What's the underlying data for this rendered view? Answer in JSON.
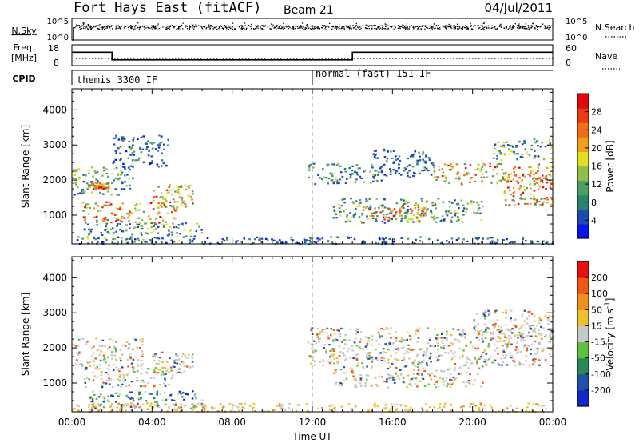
{
  "header": {
    "station": "Fort Hays East (fitACF)",
    "beam": "Beam 21",
    "date": "04/Jul/2011"
  },
  "strips": {
    "nsky": {
      "left_label": "N.Sky",
      "right_label": "N.Search",
      "left_ticks": [
        "10^5",
        "10^0"
      ],
      "right_ticks": [
        "10^5",
        "10^0"
      ]
    },
    "freq": {
      "left_label_1": "Freq.",
      "left_label_2": "[MHz]",
      "right_label": "Nave",
      "left_ticks": [
        "18",
        "8"
      ],
      "right_ticks": [
        "60",
        "0"
      ]
    },
    "cpid": {
      "label": "CPID",
      "modes": [
        {
          "start_hour": 0,
          "text": "themis 3300 IF"
        },
        {
          "start_hour": 11.85,
          "text": "normal (fast) 151 IF"
        }
      ]
    }
  },
  "chart_data": [
    {
      "type": "heatmap",
      "title": "Power",
      "xlabel": "",
      "ylabel": "Slant Range [km]",
      "xlim_hours": [
        0,
        24
      ],
      "ylim": [
        180,
        4600
      ],
      "yticks": [
        "1000",
        "2000",
        "3000",
        "4000"
      ],
      "colorbar": {
        "label": "Power [dB]",
        "ticks": [
          "4",
          "8",
          "12",
          "16",
          "20",
          "24",
          "28"
        ],
        "range": [
          0,
          32
        ],
        "colors": [
          "#0a14e6",
          "#1e4ab4",
          "#2e8070",
          "#4aa062",
          "#8cc04a",
          "#e0e020",
          "#f0a020",
          "#f07018",
          "#e83c10",
          "#e00a0a"
        ]
      },
      "scatter_regions": [
        {
          "t0": 0.0,
          "t1": 3.0,
          "r0": 1600,
          "r1": 2400,
          "level": "mixed"
        },
        {
          "t0": 0.7,
          "t1": 1.8,
          "r0": 1750,
          "r1": 1950,
          "level": "high"
        },
        {
          "t0": 0.5,
          "t1": 5.2,
          "r0": 800,
          "r1": 1400,
          "level": "high"
        },
        {
          "t0": 4.0,
          "t1": 6.0,
          "r0": 1250,
          "r1": 1900,
          "level": "high"
        },
        {
          "t0": 0.5,
          "t1": 6.5,
          "r0": 250,
          "r1": 800,
          "level": "mixed"
        },
        {
          "t0": 2.0,
          "t1": 4.8,
          "r0": 2400,
          "r1": 3300,
          "level": "low"
        },
        {
          "t0": 11.7,
          "t1": 15.5,
          "r0": 1900,
          "r1": 2500,
          "level": "mixed"
        },
        {
          "t0": 13.0,
          "t1": 20.5,
          "r0": 800,
          "r1": 1500,
          "level": "mixed"
        },
        {
          "t0": 14.5,
          "t1": 17.8,
          "r0": 900,
          "r1": 1250,
          "level": "high"
        },
        {
          "t0": 15.0,
          "t1": 18.0,
          "r0": 2100,
          "r1": 2900,
          "level": "low"
        },
        {
          "t0": 18.0,
          "t1": 24.0,
          "r0": 1900,
          "r1": 2500,
          "level": "high"
        },
        {
          "t0": 21.5,
          "t1": 24.0,
          "r0": 1300,
          "r1": 2200,
          "level": "high"
        },
        {
          "t0": 21.0,
          "t1": 24.0,
          "r0": 2600,
          "r1": 3200,
          "level": "mixed"
        },
        {
          "t0": 0.0,
          "t1": 24.0,
          "r0": 180,
          "r1": 400,
          "level": "low"
        }
      ]
    },
    {
      "type": "heatmap",
      "title": "Velocity",
      "xlabel": "Time UT",
      "ylabel": "Slant Range [km]",
      "xlim_hours": [
        0,
        24
      ],
      "ylim": [
        180,
        4600
      ],
      "xticks": [
        "00:00",
        "04:00",
        "08:00",
        "12:00",
        "16:00",
        "20:00",
        "00:00"
      ],
      "yticks": [
        "1000",
        "2000",
        "3000",
        "4000"
      ],
      "colorbar": {
        "label": "Velocity [m s^-1]",
        "ticks": [
          "200",
          "100",
          "50",
          "15",
          "-15",
          "-50",
          "-100",
          "-200"
        ],
        "range": [
          -250,
          250
        ],
        "colors": [
          "#1428c8",
          "#2050a8",
          "#2c8858",
          "#60c040",
          "#c8c8c8",
          "#f0c030",
          "#f09020",
          "#f05818",
          "#e81010"
        ]
      },
      "scatter_regions": [
        {
          "t0": 0.0,
          "t1": 3.5,
          "r0": 1500,
          "r1": 2300,
          "level": "grey"
        },
        {
          "t0": 0.5,
          "t1": 5.0,
          "r0": 900,
          "r1": 1500,
          "level": "grey"
        },
        {
          "t0": 4.0,
          "t1": 6.0,
          "r0": 1300,
          "r1": 1900,
          "level": "grey"
        },
        {
          "t0": 0.8,
          "t1": 6.5,
          "r0": 300,
          "r1": 800,
          "level": "green"
        },
        {
          "t0": 11.7,
          "t1": 24.0,
          "r0": 1500,
          "r1": 2600,
          "level": "grey"
        },
        {
          "t0": 13.0,
          "t1": 20.5,
          "r0": 900,
          "r1": 1500,
          "level": "grey"
        },
        {
          "t0": 20.0,
          "t1": 24.0,
          "r0": 2200,
          "r1": 3100,
          "level": "grey"
        },
        {
          "t0": 0.0,
          "t1": 24.0,
          "r0": 180,
          "r1": 450,
          "level": "orange"
        }
      ]
    }
  ]
}
